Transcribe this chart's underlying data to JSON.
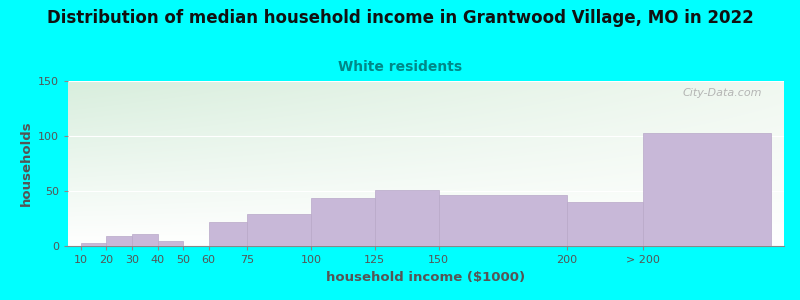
{
  "title": "Distribution of median household income in Grantwood Village, MO in 2022",
  "subtitle": "White residents",
  "xlabel": "household income ($1000)",
  "ylabel": "households",
  "background_color": "#00FFFF",
  "plot_bg_color_topleft": "#d8eedd",
  "plot_bg_color_topright": "#f0f8f0",
  "plot_bg_color_bottom": "#ffffff",
  "bar_color": "#c8b8d8",
  "bar_edge_color": "#b8a8c8",
  "categories": [
    "10",
    "20",
    "30",
    "40",
    "50",
    "60",
    "75",
    "100",
    "125",
    "150",
    "200",
    "> 200"
  ],
  "values": [
    3,
    9,
    11,
    5,
    0,
    22,
    29,
    44,
    51,
    46,
    40,
    103
  ],
  "ylim": [
    0,
    150
  ],
  "yticks": [
    0,
    50,
    100,
    150
  ],
  "title_fontsize": 12,
  "subtitle_fontsize": 10,
  "subtitle_color": "#008888",
  "axis_label_fontsize": 9.5,
  "tick_fontsize": 8,
  "title_color": "#111111",
  "tick_color": "#555555",
  "watermark_text": "City-Data.com",
  "watermark_color": "#aaaaaa",
  "x_positions": [
    10,
    20,
    30,
    40,
    50,
    60,
    75,
    100,
    125,
    150,
    200,
    230
  ],
  "bar_widths": [
    10,
    10,
    10,
    10,
    10,
    15,
    25,
    25,
    25,
    50,
    30,
    50
  ],
  "xlim_left": 5,
  "xlim_right": 285
}
